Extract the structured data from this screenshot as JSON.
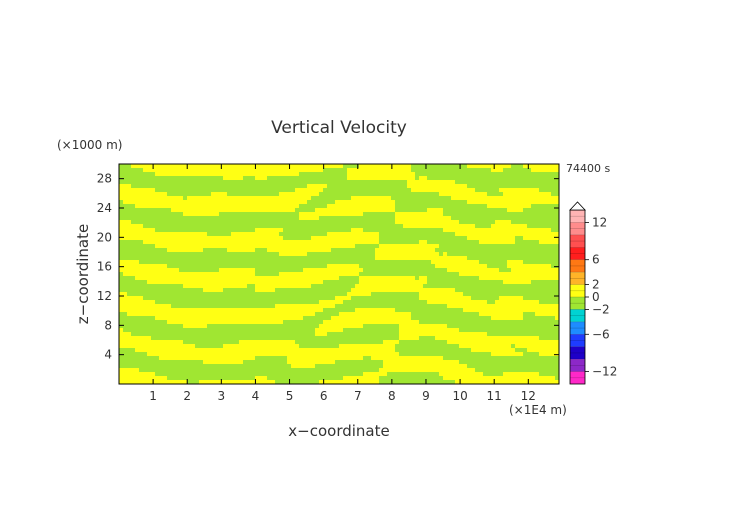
{
  "chart_data": {
    "type": "heatmap",
    "title": "Vertical Velocity",
    "xlabel": "x−coordinate",
    "ylabel": "z−coordinate",
    "x_unit": "(×1E4 m)",
    "y_unit": "(×1000 m)",
    "time_label": "74400 s",
    "xlim": [
      0,
      12.9
    ],
    "ylim": [
      0,
      30
    ],
    "x_ticks": [
      "1",
      "2",
      "3",
      "4",
      "5",
      "6",
      "7",
      "8",
      "9",
      "10",
      "11",
      "12"
    ],
    "y_ticks": [
      "4",
      "8",
      "12",
      "16",
      "20",
      "24",
      "28"
    ],
    "field_values_shown": [
      "0 to 2 (yellow)",
      "-2 to 0 (yellow-green)"
    ],
    "grid": false,
    "colorbar": {
      "ticks": [
        "12",
        "6",
        "2",
        "0",
        "−2",
        "−6",
        "−12"
      ],
      "levels": [
        {
          "from": 12,
          "to": 14,
          "color": "#ffb4b4"
        },
        {
          "from": 10,
          "to": 12,
          "color": "#ff8c8c"
        },
        {
          "from": 8,
          "to": 10,
          "color": "#ff5050"
        },
        {
          "from": 6,
          "to": 8,
          "color": "#ff1e1e"
        },
        {
          "from": 4,
          "to": 6,
          "color": "#ff7814"
        },
        {
          "from": 2,
          "to": 4,
          "color": "#ffb428"
        },
        {
          "from": 0,
          "to": 2,
          "color": "#ffff14"
        },
        {
          "from": -2,
          "to": 0,
          "color": "#a0e632"
        },
        {
          "from": -4,
          "to": -2,
          "color": "#00d2d2"
        },
        {
          "from": -6,
          "to": -4,
          "color": "#1e8cff"
        },
        {
          "from": -8,
          "to": -6,
          "color": "#1e3cff"
        },
        {
          "from": -10,
          "to": -8,
          "color": "#1e00c8"
        },
        {
          "from": -12,
          "to": -10,
          "color": "#8c28c8"
        },
        {
          "from": -14,
          "to": -12,
          "color": "#ff28c8"
        }
      ]
    }
  }
}
